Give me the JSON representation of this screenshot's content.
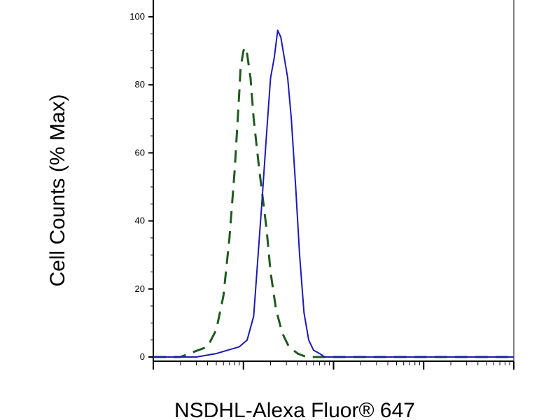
{
  "chart_data": {
    "type": "line",
    "xlabel": "NSDHL-Alexa Fluor® 647",
    "ylabel": "Cell Counts (% Max)",
    "x_scale": "log",
    "x_range": [
      0.1,
      1000
    ],
    "ylim": [
      0,
      100
    ],
    "y_ticks": [
      0,
      20,
      40,
      60,
      80,
      100
    ],
    "grid": false,
    "series": [
      {
        "style": "dashed",
        "color": "#1f5a1f",
        "x": [
          0.1,
          0.2,
          0.25,
          0.4,
          0.5,
          0.6,
          0.7,
          0.8,
          0.9,
          0.93,
          1.0,
          1.05,
          1.1,
          1.2,
          1.3,
          1.5,
          1.8,
          2.0,
          2.3,
          2.7,
          3.2,
          4,
          5,
          6,
          1000
        ],
        "y": [
          0,
          0,
          1,
          3,
          8,
          18,
          35,
          55,
          78,
          85,
          90,
          91,
          89,
          82,
          70,
          55,
          38,
          25,
          14,
          7,
          3,
          1,
          0,
          0,
          0
        ]
      },
      {
        "style": "solid",
        "color": "#1a1ab5",
        "x": [
          0.1,
          0.3,
          0.5,
          0.9,
          1.1,
          1.3,
          1.6,
          1.8,
          2.0,
          2.2,
          2.4,
          2.6,
          2.8,
          3.1,
          3.4,
          3.8,
          4.2,
          4.7,
          5.3,
          6,
          7,
          8,
          1000
        ],
        "y": [
          0,
          0,
          1,
          3,
          5,
          12,
          45,
          65,
          82,
          88,
          96,
          94,
          89,
          82,
          70,
          50,
          30,
          13,
          5,
          2,
          1,
          0,
          0
        ]
      }
    ]
  }
}
